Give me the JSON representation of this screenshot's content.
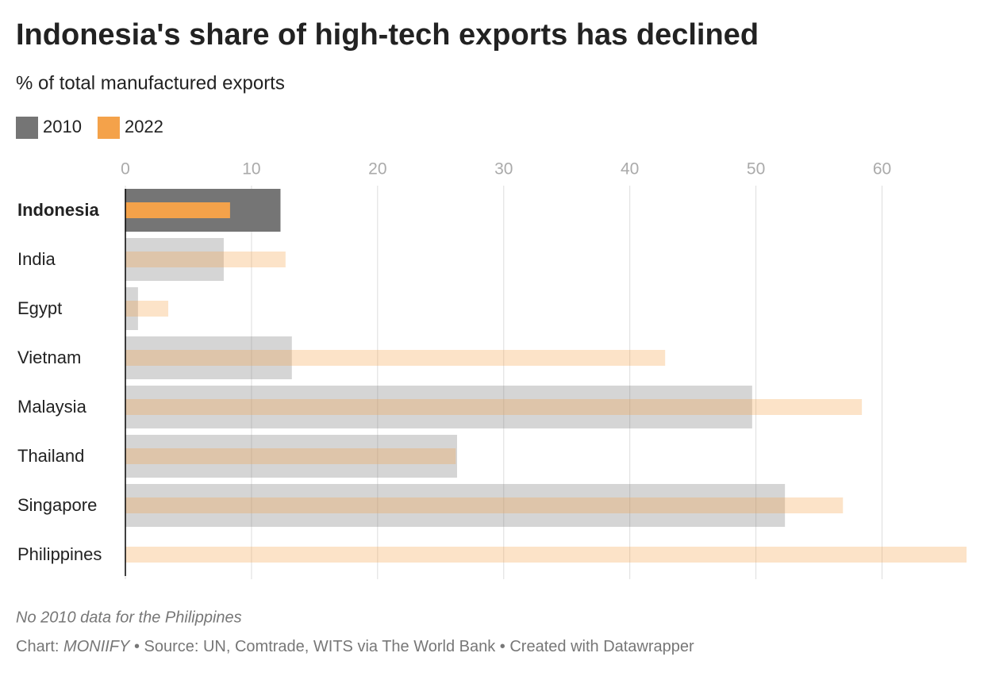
{
  "chart_data": {
    "type": "bar",
    "orientation": "horizontal",
    "title": "Indonesia's share of high-tech exports has declined",
    "subtitle": "% of total manufactured exports",
    "categories": [
      "Indonesia",
      "India",
      "Egypt",
      "Vietnam",
      "Malaysia",
      "Thailand",
      "Singapore",
      "Philippines"
    ],
    "highlight": "Indonesia",
    "series": [
      {
        "name": "2010",
        "color": "#757575",
        "values": [
          12.3,
          7.8,
          1.0,
          13.2,
          49.7,
          26.3,
          52.3,
          null
        ]
      },
      {
        "name": "2022",
        "color": "#f4a24a",
        "values": [
          8.3,
          12.7,
          3.4,
          42.8,
          58.4,
          26.2,
          56.9,
          66.7
        ]
      }
    ],
    "xlim": [
      0,
      66.7
    ],
    "xticks": [
      0,
      10,
      20,
      30,
      40,
      50,
      60
    ],
    "grid": true,
    "note": "No 2010 data for the Philippines",
    "credit": {
      "label": "Chart:",
      "author": "MONIIFY",
      "source": "• Source: UN, Comtrade, WITS via The World Bank • Created with Datawrapper"
    }
  }
}
